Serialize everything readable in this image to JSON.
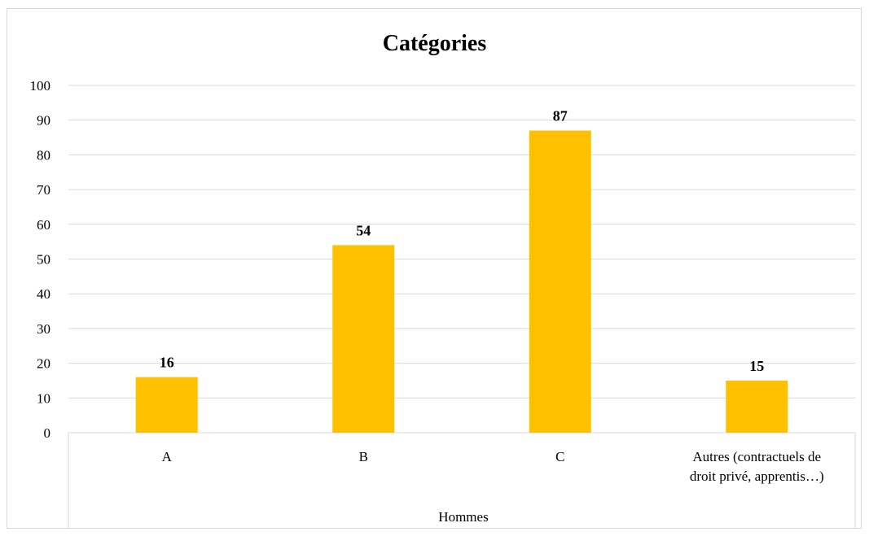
{
  "chart_data": {
    "type": "bar",
    "title": "Catégories",
    "group_label": "Hommes",
    "categories": [
      "A",
      "B",
      "C",
      "Autres (contractuels de droit privé, apprentis…)"
    ],
    "category_lines": [
      [
        "A"
      ],
      [
        "B"
      ],
      [
        "C"
      ],
      [
        "Autres (contractuels de",
        "droit privé, apprentis…)"
      ]
    ],
    "values": [
      16,
      54,
      87,
      15
    ],
    "ylim": [
      0,
      100
    ],
    "yticks": [
      0,
      10,
      20,
      30,
      40,
      50,
      60,
      70,
      80,
      90,
      100
    ],
    "grid": true,
    "bar_color": "#FFC000",
    "grid_color": "#d9d9d9"
  }
}
